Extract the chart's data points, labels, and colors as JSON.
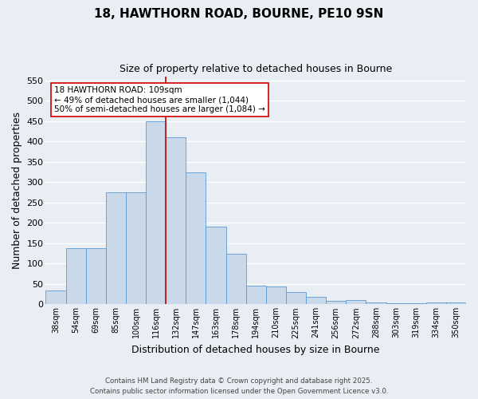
{
  "title_line1": "18, HAWTHORN ROAD, BOURNE, PE10 9SN",
  "title_line2": "Size of property relative to detached houses in Bourne",
  "xlabel": "Distribution of detached houses by size in Bourne",
  "ylabel": "Number of detached properties",
  "categories": [
    "38sqm",
    "54sqm",
    "69sqm",
    "85sqm",
    "100sqm",
    "116sqm",
    "132sqm",
    "147sqm",
    "163sqm",
    "178sqm",
    "194sqm",
    "210sqm",
    "225sqm",
    "241sqm",
    "256sqm",
    "272sqm",
    "288sqm",
    "303sqm",
    "319sqm",
    "334sqm",
    "350sqm"
  ],
  "values": [
    35,
    137,
    137,
    275,
    275,
    450,
    410,
    325,
    190,
    125,
    45,
    43,
    30,
    18,
    8,
    10,
    5,
    3,
    2,
    5,
    5
  ],
  "bar_color": "#c9d9ea",
  "bar_edge_color": "#5b9bd5",
  "vline_x": 5.5,
  "vline_color": "#cc0000",
  "annotation_text": "18 HAWTHORN ROAD: 109sqm\n← 49% of detached houses are smaller (1,044)\n50% of semi-detached houses are larger (1,084) →",
  "annotation_box_color": "#ffffff",
  "annotation_box_edge_color": "#cc0000",
  "ylim": [
    0,
    560
  ],
  "yticks": [
    0,
    50,
    100,
    150,
    200,
    250,
    300,
    350,
    400,
    450,
    500,
    550
  ],
  "footer_line1": "Contains HM Land Registry data © Crown copyright and database right 2025.",
  "footer_line2": "Contains public sector information licensed under the Open Government Licence v3.0.",
  "background_color": "#e8eef4",
  "grid_color": "#ffffff"
}
